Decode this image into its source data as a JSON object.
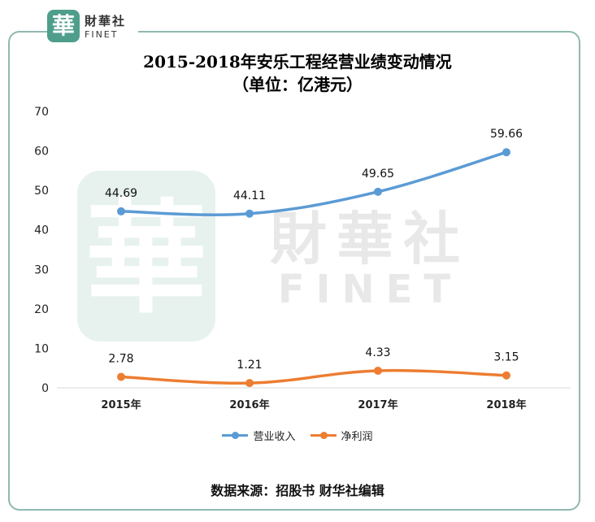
{
  "logo": {
    "glyph": "華",
    "cn": "財華社",
    "en": "FINET"
  },
  "watermark": {
    "glyph": "華",
    "cn": "財華社",
    "en": "FINET"
  },
  "title_line1": "2015-2018年安乐工程经营业绩变动情况",
  "title_line2": "（单位：亿港元）",
  "source": "数据来源：招股书     财华社编辑",
  "colors": {
    "revenue": "#5b9bd5",
    "profit": "#ed7d31",
    "frame": "#8fb8b0",
    "accent": "#4f9e8c"
  },
  "chart_data": {
    "type": "line",
    "categories": [
      "2015年",
      "2016年",
      "2017年",
      "2018年"
    ],
    "ylim": [
      0,
      70
    ],
    "yticks": [
      0,
      10,
      20,
      30,
      40,
      50,
      60,
      70
    ],
    "grid": false,
    "legend": "bottom",
    "series": [
      {
        "name": "营业收入",
        "values": [
          44.69,
          44.11,
          49.65,
          59.66
        ],
        "labels": [
          "44.69",
          "44.11",
          "49.65",
          "59.66"
        ]
      },
      {
        "name": "净利润",
        "values": [
          2.78,
          1.21,
          4.33,
          3.15
        ],
        "labels": [
          "2.78",
          "1.21",
          "4.33",
          "3.15"
        ]
      }
    ]
  }
}
